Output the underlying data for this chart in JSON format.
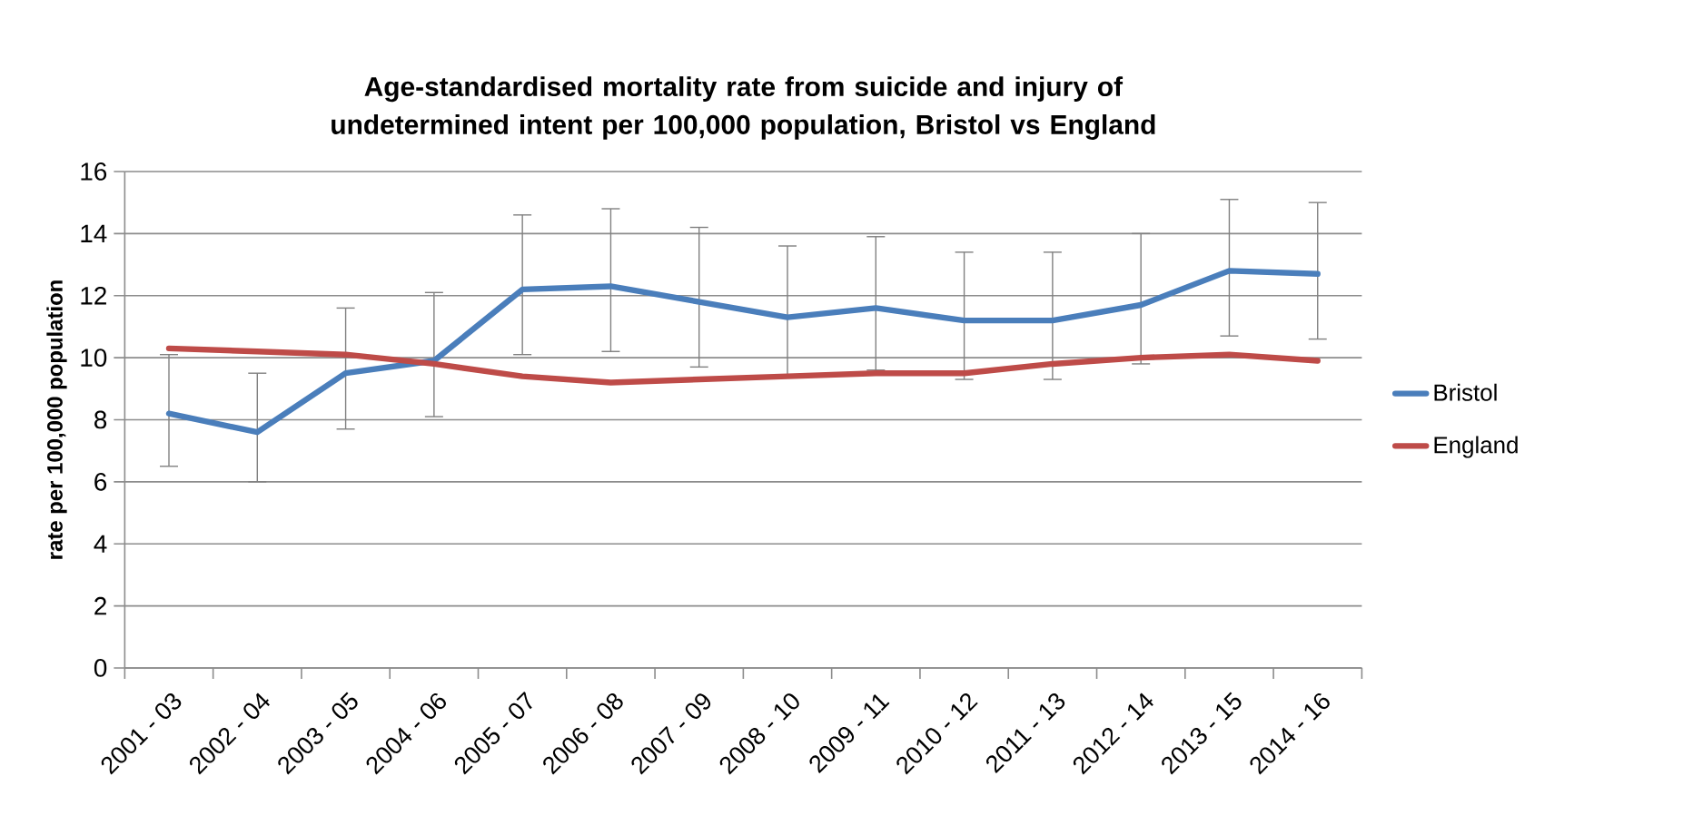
{
  "chart_data": {
    "type": "line",
    "title": "Age-standardised mortality rate from suicide and injury of undetermined intent per 100,000 population, Bristol vs England",
    "ylabel": "rate per 100,000 population",
    "categories": [
      "2001 - 03",
      "2002 - 04",
      "2003 - 05",
      "2004 - 06",
      "2005 - 07",
      "2006 - 08",
      "2007 - 09",
      "2008 - 10",
      "2009 - 11",
      "2010 - 12",
      "2011 - 13",
      "2012 - 14",
      "2013 - 15",
      "2014 - 16"
    ],
    "series": [
      {
        "name": "Bristol",
        "color": "#4a7ebb",
        "values": [
          8.2,
          7.6,
          9.5,
          9.9,
          12.2,
          12.3,
          11.8,
          11.3,
          11.6,
          11.2,
          11.2,
          11.7,
          12.8,
          12.7
        ],
        "errors": [
          [
            6.5,
            10.1
          ],
          [
            6.0,
            9.5
          ],
          [
            7.7,
            11.6
          ],
          [
            8.1,
            12.1
          ],
          [
            10.1,
            14.6
          ],
          [
            10.2,
            14.8
          ],
          [
            9.7,
            14.2
          ],
          [
            9.4,
            13.6
          ],
          [
            9.6,
            13.9
          ],
          [
            9.3,
            13.4
          ],
          [
            9.3,
            13.4
          ],
          [
            9.8,
            14.0
          ],
          [
            10.7,
            15.1
          ],
          [
            10.6,
            15.0
          ]
        ]
      },
      {
        "name": "England",
        "color": "#be4b48",
        "values": [
          10.3,
          10.2,
          10.1,
          9.8,
          9.4,
          9.2,
          9.3,
          9.4,
          9.5,
          9.5,
          9.8,
          10.0,
          10.1,
          9.9
        ]
      }
    ],
    "ylim": [
      0,
      16
    ],
    "yticks": [
      0,
      2,
      4,
      6,
      8,
      10,
      12,
      14,
      16
    ],
    "grid": "y",
    "legend": "right"
  }
}
